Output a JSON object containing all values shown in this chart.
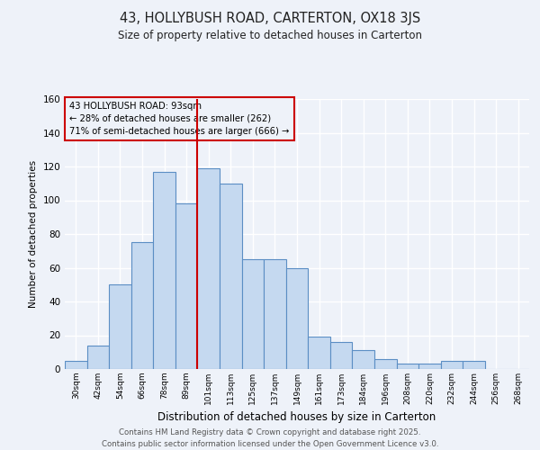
{
  "title": "43, HOLLYBUSH ROAD, CARTERTON, OX18 3JS",
  "subtitle": "Size of property relative to detached houses in Carterton",
  "xlabel": "Distribution of detached houses by size in Carterton",
  "ylabel": "Number of detached properties",
  "bar_labels": [
    "30sqm",
    "42sqm",
    "54sqm",
    "66sqm",
    "78sqm",
    "89sqm",
    "101sqm",
    "113sqm",
    "125sqm",
    "137sqm",
    "149sqm",
    "161sqm",
    "173sqm",
    "184sqm",
    "196sqm",
    "208sqm",
    "220sqm",
    "232sqm",
    "244sqm",
    "256sqm",
    "268sqm"
  ],
  "bar_values": [
    5,
    14,
    50,
    75,
    117,
    98,
    119,
    110,
    65,
    65,
    60,
    19,
    16,
    11,
    6,
    3,
    3,
    5,
    5,
    0,
    0
  ],
  "bar_color": "#c5d9f0",
  "bar_edge_color": "#5b8ec4",
  "vline_x": 5.5,
  "vline_color": "#cc0000",
  "annotation_title": "43 HOLLYBUSH ROAD: 93sqm",
  "annotation_line1": "← 28% of detached houses are smaller (262)",
  "annotation_line2": "71% of semi-detached houses are larger (666) →",
  "annotation_box_color": "#cc0000",
  "ylim": [
    0,
    160
  ],
  "yticks": [
    0,
    20,
    40,
    60,
    80,
    100,
    120,
    140,
    160
  ],
  "bg_color": "#eef2f9",
  "footer_line1": "Contains HM Land Registry data © Crown copyright and database right 2025.",
  "footer_line2": "Contains public sector information licensed under the Open Government Licence v3.0."
}
